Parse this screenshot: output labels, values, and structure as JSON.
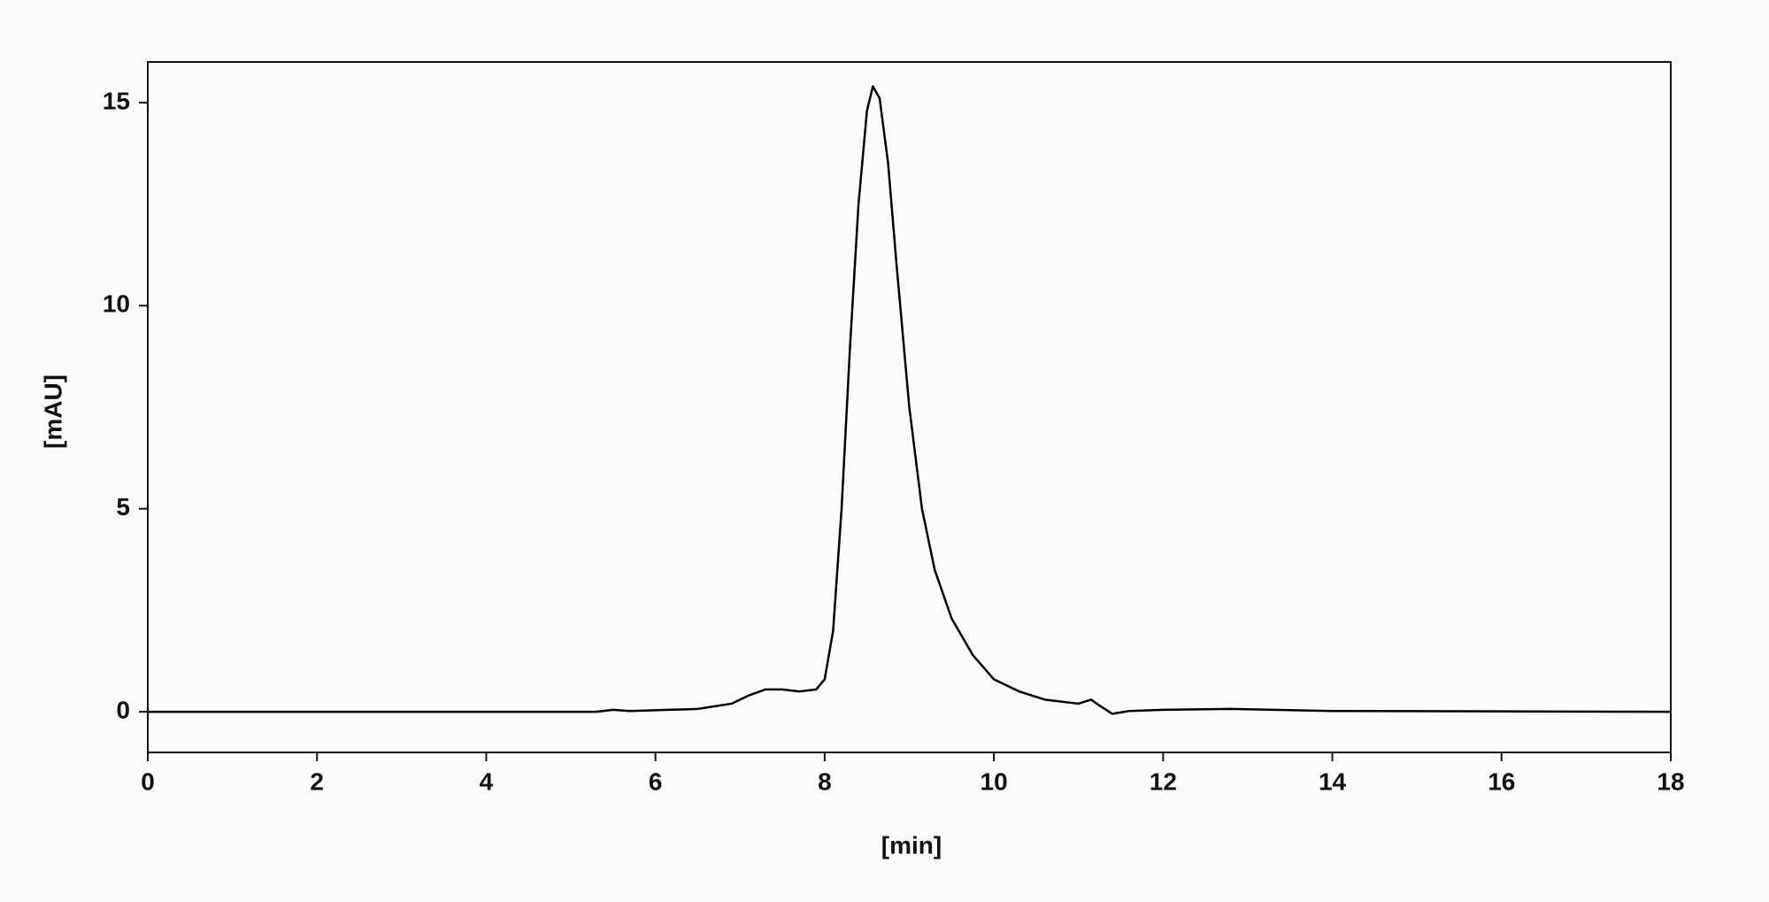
{
  "chart_data": {
    "type": "line",
    "xlabel": "[min]",
    "ylabel": "[mAU]",
    "xlim": [
      0,
      18
    ],
    "ylim": [
      -1,
      16
    ],
    "xticks": [
      0,
      2,
      4,
      6,
      8,
      10,
      12,
      14,
      16,
      18
    ],
    "yticks": [
      0,
      5,
      10,
      15
    ],
    "series": [
      {
        "color": "#000000",
        "x": [
          0,
          5.3,
          5.5,
          5.7,
          6.5,
          6.9,
          7.1,
          7.3,
          7.5,
          7.7,
          7.9,
          8.0,
          8.1,
          8.2,
          8.3,
          8.4,
          8.5,
          8.57,
          8.65,
          8.75,
          8.85,
          9.0,
          9.15,
          9.3,
          9.5,
          9.75,
          10.0,
          10.3,
          10.6,
          11.0,
          11.15,
          11.25,
          11.4,
          11.6,
          12.0,
          12.8,
          14.0,
          18.0
        ],
        "values": [
          0,
          0,
          0.05,
          0.02,
          0.07,
          0.2,
          0.4,
          0.55,
          0.55,
          0.5,
          0.55,
          0.8,
          2,
          5,
          9,
          12.5,
          14.8,
          15.4,
          15.1,
          13.5,
          11,
          7.5,
          5,
          3.5,
          2.3,
          1.4,
          0.8,
          0.5,
          0.3,
          0.2,
          0.3,
          0.15,
          -0.05,
          0.02,
          0.05,
          0.07,
          0.02,
          0
        ]
      }
    ]
  }
}
